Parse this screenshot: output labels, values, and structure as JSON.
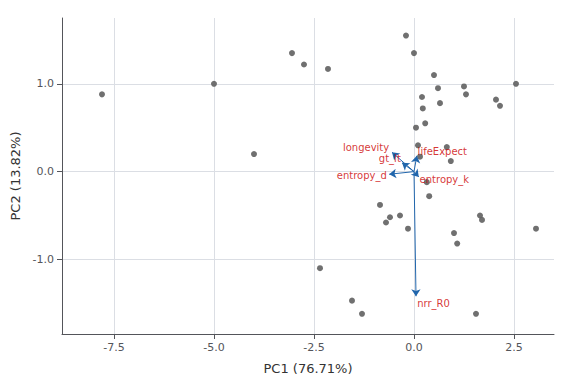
{
  "chart_data": {
    "type": "scatter",
    "xlabel": "PC1 (76.71%)",
    "ylabel": "PC2 (13.82%)",
    "xlim": [
      -8.8,
      3.5
    ],
    "ylim": [
      -1.85,
      1.75
    ],
    "xticks": [
      -7.5,
      {
        "value": -5,
        "label": "-5.0"
      },
      -2.5,
      {
        "value": 0,
        "label": "0.0"
      },
      2.5
    ],
    "yticks": [
      {
        "value": -1,
        "label": "-1.0"
      },
      {
        "value": 0,
        "label": "0.0"
      },
      {
        "value": 1,
        "label": "1.0"
      }
    ],
    "grid": true,
    "color": "#606060",
    "points": [
      [
        -7.8,
        0.88
      ],
      [
        -5.0,
        1.0
      ],
      [
        -4.0,
        0.2
      ],
      [
        -3.05,
        1.35
      ],
      [
        -2.75,
        1.22
      ],
      [
        -2.35,
        -1.1
      ],
      [
        -2.15,
        1.17
      ],
      [
        -1.55,
        -1.47
      ],
      [
        -1.3,
        -1.62
      ],
      [
        -0.85,
        -0.38
      ],
      [
        -0.7,
        -0.58
      ],
      [
        -0.6,
        -0.52
      ],
      [
        -0.35,
        -0.5
      ],
      [
        -0.2,
        1.55
      ],
      [
        -0.15,
        -0.65
      ],
      [
        0.0,
        1.35
      ],
      [
        0.05,
        0.5
      ],
      [
        0.1,
        0.3
      ],
      [
        0.15,
        0.17
      ],
      [
        0.2,
        0.85
      ],
      [
        0.22,
        0.72
      ],
      [
        0.28,
        0.55
      ],
      [
        0.32,
        -0.12
      ],
      [
        0.38,
        -0.28
      ],
      [
        0.5,
        1.1
      ],
      [
        0.6,
        0.95
      ],
      [
        0.65,
        0.78
      ],
      [
        0.82,
        0.28
      ],
      [
        0.92,
        0.12
      ],
      [
        1.0,
        -0.7
      ],
      [
        1.08,
        -0.82
      ],
      [
        1.25,
        0.97
      ],
      [
        1.3,
        0.88
      ],
      [
        1.55,
        -1.62
      ],
      [
        1.65,
        -0.5
      ],
      [
        1.7,
        -0.55
      ],
      [
        2.05,
        0.82
      ],
      [
        2.15,
        0.75
      ],
      [
        2.55,
        1.0
      ],
      [
        3.05,
        -0.65
      ]
    ],
    "arrow_origin": [
      0,
      0
    ],
    "arrow_color": "#2166AC",
    "label_color": "#CC0000",
    "arrows": [
      {
        "x": -0.55,
        "y": 0.22,
        "label": "longevity",
        "label_x": -0.62,
        "label_y": 0.28
      },
      {
        "x": 0.07,
        "y": 0.18,
        "label": "lifeExpect",
        "label_x": 0.09,
        "label_y": 0.23
      },
      {
        "x": -0.3,
        "y": 0.1,
        "label": "gt_lt",
        "label_x": -0.33,
        "label_y": 0.15
      },
      {
        "x": -0.62,
        "y": -0.03,
        "label": "entropy_d",
        "label_x": -0.68,
        "label_y": -0.04
      },
      {
        "x": 0.12,
        "y": -0.06,
        "label": "entropy_k",
        "label_x": 0.14,
        "label_y": -0.09
      },
      {
        "x": 0.05,
        "y": -1.42,
        "label": "nrr_R0",
        "label_x": 0.08,
        "label_y": -1.5
      }
    ]
  }
}
